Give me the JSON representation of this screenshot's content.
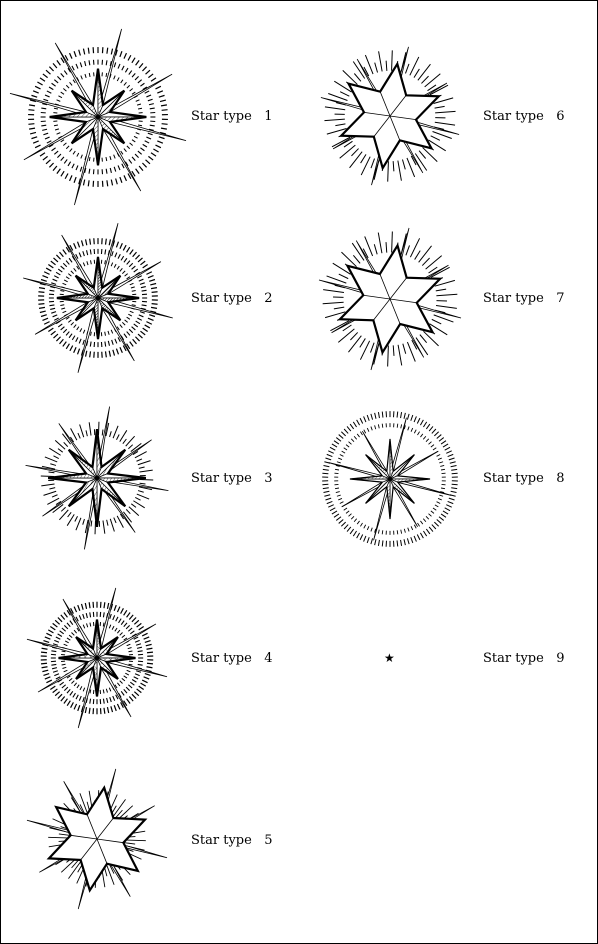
{
  "items": [
    {
      "prefix": "Star type",
      "number": "1",
      "style": "dashed-rings-hatched"
    },
    {
      "prefix": "Star type",
      "number": "2",
      "style": "dashed-rings-dark"
    },
    {
      "prefix": "Star type",
      "number": "3",
      "style": "ticks-hatched"
    },
    {
      "prefix": "Star type",
      "number": "4",
      "style": "dashed-rings-crosshatched"
    },
    {
      "prefix": "Star type",
      "number": "5",
      "style": "burst-plain"
    },
    {
      "prefix": "Star type",
      "number": "6",
      "style": "ticks-plain"
    },
    {
      "prefix": "Star type",
      "number": "7",
      "style": "ticks-plain"
    },
    {
      "prefix": "Star type",
      "number": "8",
      "style": "fine-rings-shaded"
    },
    {
      "prefix": "Star type",
      "number": "9",
      "style": "small-glyph",
      "glyph": "★"
    }
  ]
}
